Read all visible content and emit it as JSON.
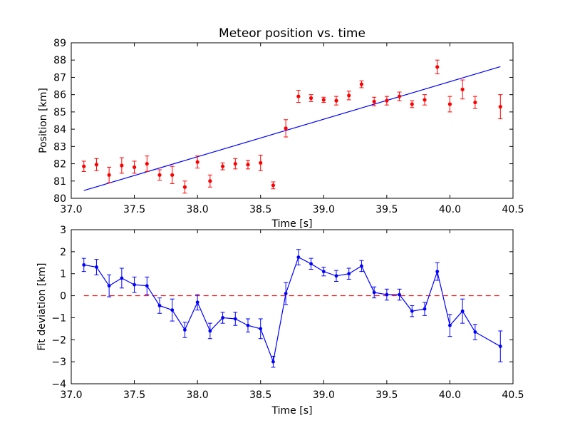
{
  "chart_data": [
    {
      "type": "scatter",
      "title": "Meteor position vs. time",
      "xlabel": "Time [s]",
      "ylabel": "Position [km]",
      "xlim": [
        37.0,
        40.5
      ],
      "ylim": [
        80,
        89
      ],
      "xticks": [
        "37.0",
        "37.5",
        "38.0",
        "38.5",
        "39.0",
        "39.5",
        "40.0",
        "40.5"
      ],
      "yticks": [
        "80",
        "81",
        "82",
        "83",
        "84",
        "85",
        "86",
        "87",
        "88",
        "89"
      ],
      "grid": false,
      "colors": {
        "points": "#ff0000",
        "fit": "#0000ff"
      },
      "series": [
        {
          "style": "points with error bars",
          "x": [
            37.1,
            37.2,
            37.3,
            37.4,
            37.5,
            37.6,
            37.7,
            37.8,
            37.9,
            38.0,
            38.1,
            38.2,
            38.3,
            38.4,
            38.5,
            38.6,
            38.7,
            38.8,
            38.9,
            39.0,
            39.1,
            39.2,
            39.3,
            39.4,
            39.5,
            39.6,
            39.7,
            39.8,
            39.9,
            40.0,
            40.1,
            40.2,
            40.4
          ],
          "y": [
            81.85,
            81.95,
            81.35,
            81.9,
            81.8,
            82.0,
            81.35,
            81.35,
            80.65,
            82.1,
            81.0,
            81.85,
            82.0,
            81.95,
            82.05,
            80.75,
            84.05,
            85.9,
            85.8,
            85.7,
            85.65,
            85.95,
            86.6,
            85.6,
            85.65,
            85.9,
            85.45,
            85.7,
            87.6,
            85.45,
            86.3,
            85.55,
            85.3
          ],
          "err": [
            0.3,
            0.35,
            0.45,
            0.45,
            0.35,
            0.45,
            0.3,
            0.5,
            0.35,
            0.35,
            0.35,
            0.2,
            0.3,
            0.25,
            0.45,
            0.2,
            0.5,
            0.35,
            0.2,
            0.15,
            0.25,
            0.25,
            0.2,
            0.25,
            0.25,
            0.25,
            0.2,
            0.3,
            0.4,
            0.45,
            0.55,
            0.35,
            0.7
          ]
        },
        {
          "style": "fit line",
          "x": [
            37.1,
            40.4
          ],
          "y": [
            80.45,
            87.62
          ]
        }
      ]
    },
    {
      "type": "line",
      "xlabel": "Time [s]",
      "ylabel": "Fit deviation [km]",
      "xlim": [
        37.0,
        40.5
      ],
      "ylim": [
        -4,
        3
      ],
      "xticks": [
        "37.0",
        "37.5",
        "38.0",
        "38.5",
        "39.0",
        "39.5",
        "40.0",
        "40.5"
      ],
      "yticks": [
        "−4",
        "−3",
        "−2",
        "−1",
        "0",
        "1",
        "2",
        "3"
      ],
      "grid": false,
      "colors": {
        "line": "#0000ff",
        "zero": "#ff0000"
      },
      "reference_line": {
        "y": 0,
        "style": "dashed"
      },
      "series": [
        {
          "style": "line with markers and error bars",
          "x": [
            37.1,
            37.2,
            37.3,
            37.4,
            37.5,
            37.6,
            37.7,
            37.8,
            37.9,
            38.0,
            38.1,
            38.2,
            38.3,
            38.4,
            38.5,
            38.6,
            38.7,
            38.8,
            38.9,
            39.0,
            39.1,
            39.2,
            39.3,
            39.4,
            39.5,
            39.6,
            39.7,
            39.8,
            39.9,
            40.0,
            40.1,
            40.2,
            40.4
          ],
          "y": [
            1.4,
            1.3,
            0.45,
            0.8,
            0.5,
            0.45,
            -0.45,
            -0.65,
            -1.55,
            -0.3,
            -1.6,
            -1.0,
            -1.05,
            -1.35,
            -1.5,
            -3.0,
            0.1,
            1.75,
            1.45,
            1.1,
            0.9,
            1.0,
            1.35,
            0.15,
            0.05,
            0.05,
            -0.7,
            -0.6,
            1.1,
            -1.35,
            -0.7,
            -1.65,
            -2.3
          ],
          "err": [
            0.3,
            0.35,
            0.5,
            0.45,
            0.35,
            0.4,
            0.35,
            0.5,
            0.35,
            0.35,
            0.35,
            0.25,
            0.3,
            0.3,
            0.45,
            0.25,
            0.5,
            0.35,
            0.25,
            0.2,
            0.25,
            0.25,
            0.25,
            0.25,
            0.25,
            0.25,
            0.25,
            0.3,
            0.4,
            0.5,
            0.55,
            0.35,
            0.7
          ]
        }
      ]
    }
  ]
}
